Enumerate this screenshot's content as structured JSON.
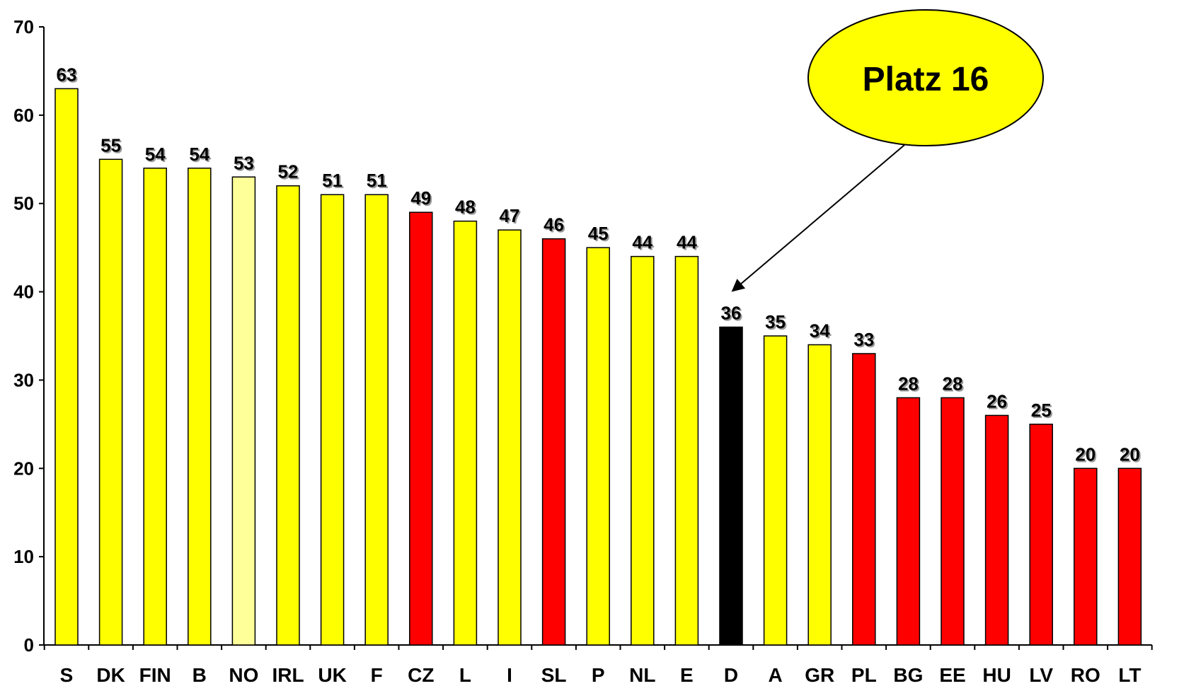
{
  "chart_data": {
    "type": "bar",
    "title": "",
    "xlabel": "",
    "ylabel": "",
    "ylim": [
      0,
      70
    ],
    "yticks": [
      0,
      10,
      20,
      30,
      40,
      50,
      60,
      70
    ],
    "grid": false,
    "categories": [
      "S",
      "DK",
      "FIN",
      "B",
      "NO",
      "IRL",
      "UK",
      "F",
      "CZ",
      "L",
      "I",
      "SL",
      "P",
      "NL",
      "E",
      "D",
      "A",
      "GR",
      "PL",
      "BG",
      "EE",
      "HU",
      "LV",
      "RO",
      "LT"
    ],
    "values": [
      63,
      55,
      54,
      54,
      53,
      52,
      51,
      51,
      49,
      48,
      47,
      46,
      45,
      44,
      44,
      36,
      35,
      34,
      33,
      28,
      28,
      26,
      25,
      20,
      20
    ],
    "bar_colors": [
      "#ffff00",
      "#ffff00",
      "#ffff00",
      "#ffff00",
      "#ffff99",
      "#ffff00",
      "#ffff00",
      "#ffff00",
      "#ff0000",
      "#ffff00",
      "#ffff00",
      "#ff0000",
      "#ffff00",
      "#ffff00",
      "#ffff00",
      "#000000",
      "#ffff00",
      "#ffff00",
      "#ff0000",
      "#ff0000",
      "#ff0000",
      "#ff0000",
      "#ff0000",
      "#ff0000",
      "#ff0000"
    ],
    "annotation": {
      "text": "Platz 16",
      "target_category": "D",
      "fill_color": "#ffff00"
    }
  }
}
